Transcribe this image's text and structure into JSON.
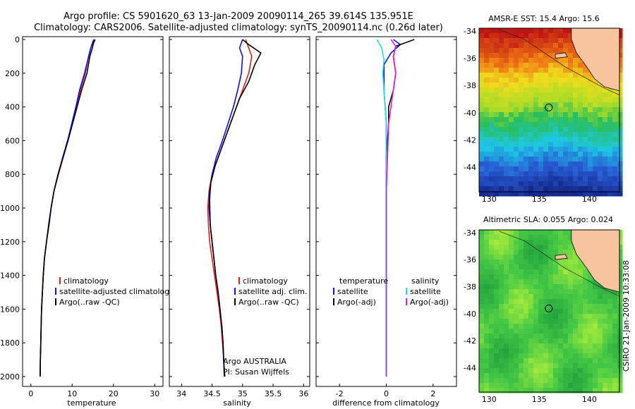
{
  "header": {
    "line1": "Argo profile: CS 5901620_63 13-Jan-2009 20090114_265 39.614S 135.951E",
    "line2": "Climatology: CARS2006. Satellite-adjusted climatology: synTS_20090114.nc (0.26d later)"
  },
  "colors": {
    "climatology": "#e02020",
    "satellite": "#1010e0",
    "argo": "#000000",
    "sat_salinity": "#20e0e0",
    "argo_adj_salinity": "#e020e0",
    "land": "#f7c49d"
  },
  "chart_data": [
    {
      "type": "line",
      "name": "temperature-profile",
      "xlabel": "temperature",
      "ylabel": "",
      "xlim": [
        -2,
        32
      ],
      "ylim": [
        2050,
        0
      ],
      "xticks": [
        0,
        10,
        20,
        30
      ],
      "yticks": [
        0,
        200,
        400,
        600,
        800,
        1000,
        1200,
        1400,
        1600,
        1800,
        2000
      ],
      "legend": [
        "climatology",
        "satellite-adjusted climatolog",
        "Argo(..raw -QC)"
      ],
      "series": [
        {
          "name": "climatology",
          "points": [
            [
              15.2,
              0
            ],
            [
              14.9,
              20
            ],
            [
              14.5,
              50
            ],
            [
              14.0,
              100
            ],
            [
              13.2,
              200
            ],
            [
              12.0,
              300
            ],
            [
              11.0,
              400
            ],
            [
              10.0,
              500
            ],
            [
              9.0,
              600
            ],
            [
              7.8,
              700
            ],
            [
              6.7,
              800
            ],
            [
              5.6,
              900
            ],
            [
              4.9,
              1000
            ],
            [
              4.4,
              1100
            ],
            [
              3.8,
              1200
            ],
            [
              3.3,
              1300
            ],
            [
              3.0,
              1400
            ],
            [
              2.8,
              1500
            ],
            [
              2.6,
              1600
            ],
            [
              2.5,
              1700
            ],
            [
              2.4,
              1800
            ],
            [
              2.3,
              1900
            ],
            [
              2.25,
              2000
            ]
          ]
        },
        {
          "name": "satellite-adjusted climatolog",
          "points": [
            [
              15.3,
              0
            ],
            [
              15.0,
              20
            ],
            [
              14.5,
              50
            ],
            [
              14.0,
              100
            ],
            [
              13.0,
              200
            ],
            [
              11.8,
              300
            ],
            [
              10.9,
              400
            ],
            [
              9.9,
              500
            ],
            [
              8.9,
              600
            ],
            [
              7.7,
              700
            ],
            [
              6.6,
              800
            ],
            [
              5.6,
              900
            ],
            [
              4.9,
              1000
            ],
            [
              4.4,
              1100
            ],
            [
              3.8,
              1200
            ],
            [
              3.3,
              1300
            ],
            [
              3.0,
              1400
            ],
            [
              2.8,
              1500
            ],
            [
              2.6,
              1600
            ],
            [
              2.5,
              1700
            ],
            [
              2.4,
              1800
            ],
            [
              2.3,
              1900
            ],
            [
              2.25,
              2000
            ]
          ]
        },
        {
          "name": "Argo(..raw -QC)",
          "points": [
            [
              15.6,
              0
            ],
            [
              15.2,
              20
            ],
            [
              14.9,
              50
            ],
            [
              14.3,
              100
            ],
            [
              13.6,
              200
            ],
            [
              12.3,
              300
            ],
            [
              11.2,
              400
            ],
            [
              10.1,
              500
            ],
            [
              9.0,
              600
            ],
            [
              7.8,
              700
            ],
            [
              6.6,
              800
            ],
            [
              5.6,
              900
            ],
            [
              4.9,
              1000
            ],
            [
              4.3,
              1100
            ],
            [
              3.8,
              1200
            ],
            [
              3.3,
              1300
            ],
            [
              3.0,
              1400
            ],
            [
              2.8,
              1500
            ],
            [
              2.6,
              1600
            ],
            [
              2.5,
              1700
            ],
            [
              2.4,
              1800
            ],
            [
              2.3,
              1900
            ],
            [
              2.25,
              2000
            ]
          ]
        }
      ]
    },
    {
      "type": "line",
      "name": "salinity-profile",
      "xlabel": "salinity",
      "xlim": [
        33.8,
        36.1
      ],
      "ylim": [
        2050,
        0
      ],
      "xticks": [
        34,
        34.5,
        35,
        35.5,
        36
      ],
      "xticklabels": [
        "34",
        "34.5",
        "35",
        "35.5",
        "36"
      ],
      "legend": [
        "climatology",
        "satellite adj. clim.",
        "Argo(..raw -QC)"
      ],
      "annotations": [
        "Argo AUSTRALIA",
        "PI: Susan Wijffels"
      ],
      "series": [
        {
          "name": "climatology",
          "points": [
            [
              35.05,
              0
            ],
            [
              35.1,
              50
            ],
            [
              35.15,
              100
            ],
            [
              35.1,
              200
            ],
            [
              35.0,
              300
            ],
            [
              34.9,
              400
            ],
            [
              34.8,
              500
            ],
            [
              34.7,
              600
            ],
            [
              34.6,
              700
            ],
            [
              34.5,
              800
            ],
            [
              34.45,
              900
            ],
            [
              34.43,
              1000
            ],
            [
              34.44,
              1100
            ],
            [
              34.46,
              1200
            ],
            [
              34.5,
              1300
            ],
            [
              34.54,
              1400
            ],
            [
              34.58,
              1500
            ],
            [
              34.62,
              1600
            ],
            [
              34.65,
              1700
            ],
            [
              34.67,
              1800
            ],
            [
              34.69,
              1900
            ],
            [
              34.7,
              2000
            ]
          ]
        },
        {
          "name": "satellite adj. clim.",
          "points": [
            [
              35.0,
              0
            ],
            [
              34.95,
              50
            ],
            [
              35.0,
              100
            ],
            [
              34.98,
              200
            ],
            [
              34.92,
              300
            ],
            [
              34.85,
              400
            ],
            [
              34.76,
              500
            ],
            [
              34.67,
              600
            ],
            [
              34.57,
              700
            ],
            [
              34.5,
              800
            ],
            [
              34.46,
              900
            ],
            [
              34.45,
              1000
            ],
            [
              34.47,
              1100
            ],
            [
              34.5,
              1200
            ],
            [
              34.53,
              1300
            ],
            [
              34.56,
              1400
            ],
            [
              34.6,
              1500
            ],
            [
              34.63,
              1600
            ],
            [
              34.66,
              1700
            ],
            [
              34.68,
              1800
            ],
            [
              34.69,
              1900
            ],
            [
              34.7,
              2000
            ]
          ]
        },
        {
          "name": "Argo(..raw -QC)",
          "points": [
            [
              35.0,
              0
            ],
            [
              35.1,
              30
            ],
            [
              35.3,
              80
            ],
            [
              35.2,
              150
            ],
            [
              35.1,
              250
            ],
            [
              34.95,
              350
            ],
            [
              34.85,
              450
            ],
            [
              34.75,
              550
            ],
            [
              34.65,
              650
            ],
            [
              34.55,
              750
            ],
            [
              34.48,
              850
            ],
            [
              34.46,
              950
            ],
            [
              34.47,
              1100
            ],
            [
              34.5,
              1200
            ],
            [
              34.53,
              1300
            ],
            [
              34.56,
              1400
            ],
            [
              34.6,
              1500
            ],
            [
              34.63,
              1600
            ],
            [
              34.66,
              1700
            ],
            [
              34.68,
              1800
            ],
            [
              34.69,
              1900
            ],
            [
              34.71,
              2000
            ]
          ]
        }
      ]
    },
    {
      "type": "line",
      "name": "difference-profile",
      "xlabel": "difference from climatology",
      "xlim": [
        -3,
        3
      ],
      "ylim": [
        2050,
        0
      ],
      "xticks": [
        -2,
        0,
        2
      ],
      "legend_left_header": "temperature",
      "legend_right_header": "salinity",
      "legend_left": [
        "satellite",
        "Argo(-adj)"
      ],
      "legend_right": [
        "satellite",
        "Argo(-adj)"
      ],
      "series": [
        {
          "name": "satellite",
          "group": "temperature",
          "points": [
            [
              0.3,
              0
            ],
            [
              0.6,
              30
            ],
            [
              0.2,
              80
            ],
            [
              -0.1,
              150
            ],
            [
              -0.1,
              300
            ],
            [
              0.0,
              500
            ],
            [
              0.0,
              700
            ],
            [
              0.0,
              900
            ],
            [
              0.0,
              1100
            ],
            [
              0.0,
              1300
            ],
            [
              0.0,
              1500
            ],
            [
              0.0,
              1700
            ],
            [
              0.0,
              1900
            ],
            [
              0.0,
              2000
            ]
          ]
        },
        {
          "name": "Argo(-adj)",
          "group": "temperature",
          "points": [
            [
              1.2,
              0
            ],
            [
              0.4,
              40
            ],
            [
              0.3,
              100
            ],
            [
              0.4,
              200
            ],
            [
              0.3,
              300
            ],
            [
              0.1,
              400
            ],
            [
              0.1,
              500
            ],
            [
              0.0,
              700
            ],
            [
              0.0,
              900
            ],
            [
              0.0,
              1100
            ],
            [
              0.0,
              1300
            ],
            [
              0.0,
              1500
            ],
            [
              0.0,
              1700
            ],
            [
              0.0,
              1900
            ],
            [
              0.0,
              2000
            ]
          ]
        },
        {
          "name": "satellite",
          "group": "salinity",
          "points": [
            [
              -0.4,
              0
            ],
            [
              -0.2,
              50
            ],
            [
              -0.1,
              120
            ],
            [
              -0.15,
              200
            ],
            [
              -0.1,
              300
            ],
            [
              -0.05,
              400
            ],
            [
              0.0,
              500
            ],
            [
              0.0,
              700
            ],
            [
              0.0,
              900
            ],
            [
              0.0,
              1100
            ],
            [
              0.0,
              1300
            ],
            [
              0.0,
              1500
            ],
            [
              0.0,
              1700
            ],
            [
              0.0,
              1900
            ],
            [
              0.0,
              2000
            ]
          ]
        },
        {
          "name": "Argo(-adj)",
          "group": "salinity",
          "points": [
            [
              0.2,
              0
            ],
            [
              0.4,
              40
            ],
            [
              0.3,
              100
            ],
            [
              0.4,
              200
            ],
            [
              0.3,
              300
            ],
            [
              0.2,
              400
            ],
            [
              0.1,
              500
            ],
            [
              0.05,
              700
            ],
            [
              0.0,
              900
            ],
            [
              0.0,
              1100
            ],
            [
              0.0,
              1300
            ],
            [
              0.0,
              1500
            ],
            [
              0.0,
              1700
            ],
            [
              0.0,
              1900
            ],
            [
              0.0,
              2000
            ]
          ]
        }
      ]
    },
    {
      "type": "heatmap",
      "name": "amsre-sst-map",
      "title": "AMSR-E SST: 15.4 Argo: 15.6",
      "xlim": [
        129,
        143
      ],
      "ylim": [
        -45.8,
        -33.8
      ],
      "xticks": [
        130,
        135,
        140
      ],
      "yticks": [
        -34,
        -36,
        -38,
        -40,
        -42,
        -44
      ],
      "marker": {
        "lon": 135.951,
        "lat": -39.614
      }
    },
    {
      "type": "heatmap",
      "name": "altimetric-sla-map",
      "title": "Altimetric SLA: 0.055 Argo: 0.024",
      "xlim": [
        129,
        143
      ],
      "ylim": [
        -45.8,
        -33.8
      ],
      "xticks": [
        130,
        135,
        140
      ],
      "yticks": [
        -34,
        -36,
        -38,
        -40,
        -42,
        -44
      ],
      "marker": {
        "lon": 135.951,
        "lat": -39.614
      }
    }
  ],
  "side_caption": "CSIRO 21-Jan-2009 10:33:08"
}
